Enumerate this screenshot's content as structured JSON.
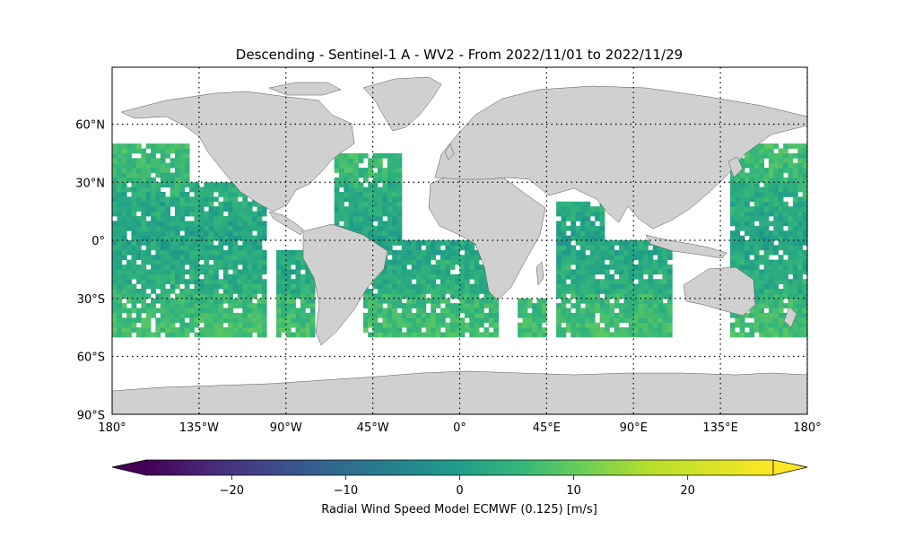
{
  "title": "Descending - Sentinel-1 A - WV2 - From 2022/11/01 to 2022/11/29",
  "map": {
    "lon_ticks": [
      "180°",
      "135°W",
      "90°W",
      "45°W",
      "0°",
      "45°E",
      "90°E",
      "135°E",
      "180°"
    ],
    "lat_ticks": [
      "60°N",
      "30°N",
      "0°",
      "30°S",
      "60°S",
      "90°S"
    ],
    "land_color": "#d0d0d0",
    "grid": "dotted"
  },
  "colorbar": {
    "label": "Radial Wind Speed Model ECMWF (0.125) [m/s]",
    "colormap": "viridis",
    "range": [
      -27.5,
      27.5
    ],
    "ticks": [
      "−20",
      "−10",
      "0",
      "10",
      "20"
    ],
    "extend": "both"
  },
  "swaths": [
    {
      "lon": [
        -180,
        -140
      ],
      "lat": [
        -50,
        50
      ]
    },
    {
      "lon": [
        -140,
        -100
      ],
      "lat": [
        -50,
        30
      ]
    },
    {
      "lon": [
        -95,
        -75
      ],
      "lat": [
        -50,
        -5
      ]
    },
    {
      "lon": [
        -65,
        -30
      ],
      "lat": [
        0,
        45
      ]
    },
    {
      "lon": [
        -50,
        20
      ],
      "lat": [
        -50,
        0
      ]
    },
    {
      "lon": [
        30,
        45
      ],
      "lat": [
        -50,
        -30
      ]
    },
    {
      "lon": [
        50,
        75
      ],
      "lat": [
        -50,
        20
      ]
    },
    {
      "lon": [
        75,
        110
      ],
      "lat": [
        -50,
        0
      ]
    },
    {
      "lon": [
        140,
        180
      ],
      "lat": [
        -50,
        50
      ]
    }
  ]
}
